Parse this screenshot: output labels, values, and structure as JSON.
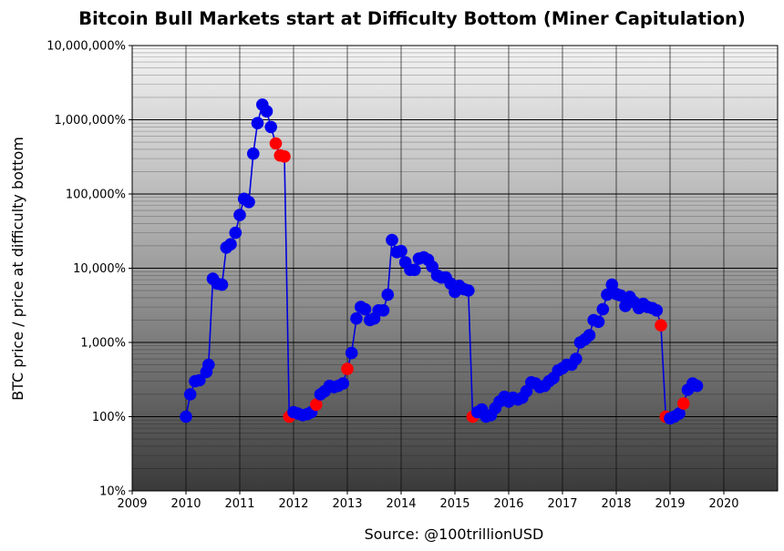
{
  "chart_data": {
    "type": "scatter",
    "title": "Bitcoin Bull Markets start at Difficulty Bottom (Miner Capitulation)",
    "xlabel": "Source: @100trillionUSD",
    "ylabel": "BTC price / price at difficulty bottom",
    "x_scale": "linear",
    "y_scale": "log",
    "xlim": [
      2009,
      2021
    ],
    "ylim": [
      0.1,
      100000
    ],
    "x_ticks": [
      2009,
      2010,
      2011,
      2012,
      2013,
      2014,
      2015,
      2016,
      2017,
      2018,
      2019,
      2020
    ],
    "x_tick_labels": [
      "2009",
      "2010",
      "2011",
      "2012",
      "2013",
      "2014",
      "2015",
      "2016",
      "2017",
      "2018",
      "2019",
      "2020"
    ],
    "y_ticks": [
      0.1,
      1,
      10,
      100,
      1000,
      10000,
      100000
    ],
    "y_tick_labels": [
      "10%",
      "100%",
      "1,000%",
      "10,000%",
      "100,000%",
      "1,000,000%",
      "10,000,000%"
    ],
    "grid": true,
    "background": "vertical gradient from light gray at top to dark gray at bottom",
    "line_color": "#0000dd",
    "colors": {
      "normal": "#0000ee",
      "difficulty_drop": "#ff0000"
    },
    "series": [
      {
        "points": [
          [
            2010.0,
            1.0,
            "normal"
          ],
          [
            2010.08,
            2.0,
            "normal"
          ],
          [
            2010.17,
            3.0,
            "normal"
          ],
          [
            2010.25,
            3.1,
            "normal"
          ],
          [
            2010.38,
            4.0,
            "normal"
          ],
          [
            2010.42,
            5.0,
            "normal"
          ],
          [
            2010.5,
            72.0,
            "normal"
          ],
          [
            2010.58,
            62.0,
            "normal"
          ],
          [
            2010.67,
            60.0,
            "normal"
          ],
          [
            2010.75,
            190.0,
            "normal"
          ],
          [
            2010.83,
            210.0,
            "normal"
          ],
          [
            2010.92,
            300.0,
            "normal"
          ],
          [
            2011.0,
            520.0,
            "normal"
          ],
          [
            2011.08,
            860.0,
            "normal"
          ],
          [
            2011.17,
            780.0,
            "normal"
          ],
          [
            2011.25,
            3500.0,
            "normal"
          ],
          [
            2011.33,
            9000.0,
            "normal"
          ],
          [
            2011.42,
            16000.0,
            "normal"
          ],
          [
            2011.5,
            13000.0,
            "normal"
          ],
          [
            2011.58,
            8000.0,
            "normal"
          ],
          [
            2011.67,
            4800.0,
            "difficulty_drop"
          ],
          [
            2011.75,
            3300.0,
            "difficulty_drop"
          ],
          [
            2011.83,
            3200.0,
            "difficulty_drop"
          ],
          [
            2011.92,
            1.0,
            "difficulty_drop"
          ],
          [
            2012.0,
            1.15,
            "normal"
          ],
          [
            2012.08,
            1.1,
            "normal"
          ],
          [
            2012.17,
            1.05,
            "normal"
          ],
          [
            2012.25,
            1.08,
            "normal"
          ],
          [
            2012.33,
            1.15,
            "normal"
          ],
          [
            2012.42,
            1.45,
            "difficulty_drop"
          ],
          [
            2012.5,
            2.0,
            "normal"
          ],
          [
            2012.58,
            2.2,
            "normal"
          ],
          [
            2012.67,
            2.6,
            "normal"
          ],
          [
            2012.75,
            2.5,
            "normal"
          ],
          [
            2012.83,
            2.6,
            "normal"
          ],
          [
            2012.92,
            2.8,
            "normal"
          ],
          [
            2013.0,
            4.4,
            "difficulty_drop"
          ],
          [
            2013.08,
            7.2,
            "normal"
          ],
          [
            2013.17,
            21.0,
            "normal"
          ],
          [
            2013.25,
            30.0,
            "normal"
          ],
          [
            2013.33,
            28.0,
            "normal"
          ],
          [
            2013.42,
            20.0,
            "normal"
          ],
          [
            2013.5,
            21.0,
            "normal"
          ],
          [
            2013.58,
            27.0,
            "normal"
          ],
          [
            2013.67,
            27.0,
            "normal"
          ],
          [
            2013.75,
            44.0,
            "normal"
          ],
          [
            2013.83,
            240.0,
            "normal"
          ],
          [
            2013.92,
            165.0,
            "normal"
          ],
          [
            2014.0,
            170.0,
            "normal"
          ],
          [
            2014.08,
            120.0,
            "normal"
          ],
          [
            2014.17,
            95.0,
            "normal"
          ],
          [
            2014.25,
            95.0,
            "normal"
          ],
          [
            2014.33,
            135.0,
            "normal"
          ],
          [
            2014.42,
            140.0,
            "normal"
          ],
          [
            2014.5,
            130.0,
            "normal"
          ],
          [
            2014.58,
            105.0,
            "normal"
          ],
          [
            2014.67,
            80.0,
            "normal"
          ],
          [
            2014.75,
            75.0,
            "normal"
          ],
          [
            2014.83,
            75.0,
            "normal"
          ],
          [
            2014.92,
            62.0,
            "normal"
          ],
          [
            2015.0,
            48.0,
            "normal"
          ],
          [
            2015.08,
            58.0,
            "normal"
          ],
          [
            2015.17,
            52.0,
            "normal"
          ],
          [
            2015.25,
            50.0,
            "normal"
          ],
          [
            2015.33,
            1.0,
            "difficulty_drop"
          ],
          [
            2015.42,
            1.15,
            "normal"
          ],
          [
            2015.5,
            1.25,
            "normal"
          ],
          [
            2015.58,
            1.0,
            "normal"
          ],
          [
            2015.67,
            1.05,
            "normal"
          ],
          [
            2015.75,
            1.3,
            "normal"
          ],
          [
            2015.83,
            1.6,
            "normal"
          ],
          [
            2015.92,
            1.85,
            "normal"
          ],
          [
            2016.0,
            1.6,
            "normal"
          ],
          [
            2016.08,
            1.8,
            "normal"
          ],
          [
            2016.17,
            1.7,
            "normal"
          ],
          [
            2016.25,
            1.8,
            "normal"
          ],
          [
            2016.33,
            2.2,
            "normal"
          ],
          [
            2016.42,
            2.9,
            "normal"
          ],
          [
            2016.5,
            2.8,
            "normal"
          ],
          [
            2016.58,
            2.5,
            "normal"
          ],
          [
            2016.67,
            2.6,
            "normal"
          ],
          [
            2016.75,
            3.0,
            "normal"
          ],
          [
            2016.83,
            3.3,
            "normal"
          ],
          [
            2016.92,
            4.2,
            "normal"
          ],
          [
            2017.0,
            4.5,
            "normal"
          ],
          [
            2017.08,
            5.0,
            "normal"
          ],
          [
            2017.17,
            5.0,
            "normal"
          ],
          [
            2017.25,
            6.0,
            "normal"
          ],
          [
            2017.33,
            10.0,
            "normal"
          ],
          [
            2017.42,
            11.0,
            "normal"
          ],
          [
            2017.5,
            12.5,
            "normal"
          ],
          [
            2017.58,
            20.0,
            "normal"
          ],
          [
            2017.67,
            19.0,
            "normal"
          ],
          [
            2017.75,
            28.0,
            "normal"
          ],
          [
            2017.83,
            44.0,
            "normal"
          ],
          [
            2017.92,
            60.0,
            "normal"
          ],
          [
            2018.0,
            45.0,
            "normal"
          ],
          [
            2018.08,
            43.0,
            "normal"
          ],
          [
            2018.17,
            31.0,
            "normal"
          ],
          [
            2018.25,
            41.0,
            "normal"
          ],
          [
            2018.33,
            35.0,
            "normal"
          ],
          [
            2018.42,
            29.0,
            "normal"
          ],
          [
            2018.5,
            33.0,
            "normal"
          ],
          [
            2018.58,
            30.0,
            "normal"
          ],
          [
            2018.67,
            29.0,
            "normal"
          ],
          [
            2018.75,
            27.0,
            "normal"
          ],
          [
            2018.83,
            17.0,
            "difficulty_drop"
          ],
          [
            2018.92,
            1.0,
            "difficulty_drop"
          ],
          [
            2019.0,
            0.95,
            "normal"
          ],
          [
            2019.08,
            1.0,
            "normal"
          ],
          [
            2019.17,
            1.1,
            "normal"
          ],
          [
            2019.25,
            1.5,
            "difficulty_drop"
          ],
          [
            2019.33,
            2.3,
            "normal"
          ],
          [
            2019.42,
            2.8,
            "normal"
          ],
          [
            2019.5,
            2.6,
            "normal"
          ]
        ]
      }
    ]
  }
}
